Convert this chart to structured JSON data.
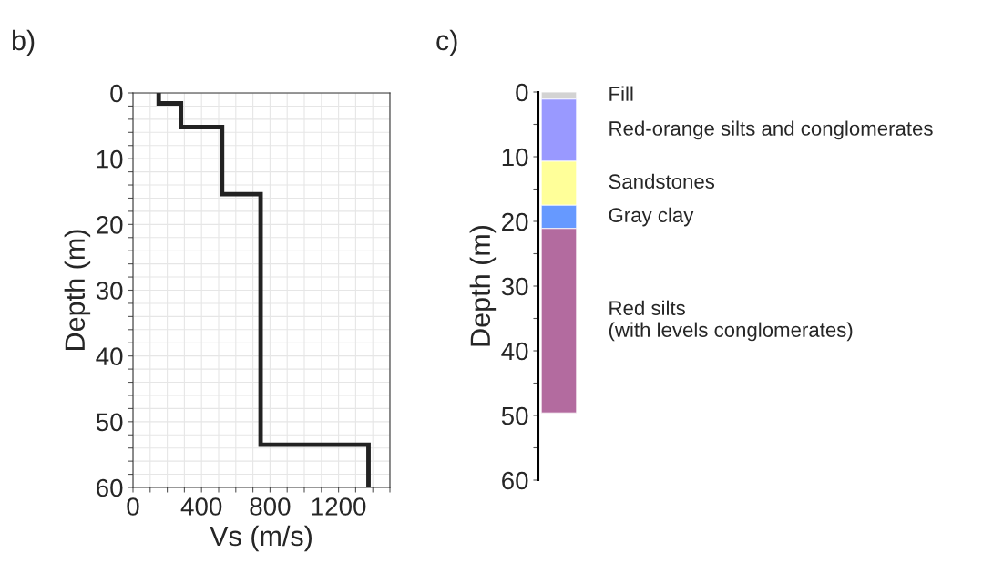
{
  "chart_data": [
    {
      "type": "line",
      "title": "b)",
      "xlabel": "Vs (m/s)",
      "ylabel": "Depth (m)",
      "series": [
        {
          "color": "#222222",
          "x": [
            150,
            150,
            280,
            280,
            520,
            520,
            745,
            745,
            1375,
            1375
          ],
          "values": [
            0,
            1.6,
            1.6,
            5.2,
            5.2,
            15.4,
            15.4,
            53.5,
            53.5,
            60
          ]
        }
      ],
      "xlim": [
        0,
        1500
      ],
      "ylim": [
        60,
        0
      ],
      "xticks": [
        0,
        {
          "value": 100,
          "label": null
        },
        {
          "value": 200,
          "label": null
        },
        {
          "value": 300,
          "label": null
        },
        400,
        {
          "value": 500,
          "label": null
        },
        {
          "value": 600,
          "label": null
        },
        {
          "value": 700,
          "label": null
        },
        800,
        {
          "value": 900,
          "label": null
        },
        {
          "value": 1000,
          "label": null
        },
        {
          "value": 1100,
          "label": null
        },
        1200,
        {
          "value": 1300,
          "label": null
        },
        {
          "value": 1400,
          "label": null
        },
        {
          "value": 1500,
          "label": null
        }
      ],
      "yticks": [
        0,
        {
          "value": 2,
          "label": null
        },
        {
          "value": 4,
          "label": null
        },
        {
          "value": 6,
          "label": null
        },
        {
          "value": 8,
          "label": null
        },
        10,
        {
          "value": 12,
          "label": null
        },
        {
          "value": 14,
          "label": null
        },
        {
          "value": 16,
          "label": null
        },
        {
          "value": 18,
          "label": null
        },
        20,
        {
          "value": 22,
          "label": null
        },
        {
          "value": 24,
          "label": null
        },
        {
          "value": 26,
          "label": null
        },
        {
          "value": 28,
          "label": null
        },
        30,
        {
          "value": 32,
          "label": null
        },
        {
          "value": 34,
          "label": null
        },
        {
          "value": 36,
          "label": null
        },
        {
          "value": 38,
          "label": null
        },
        40,
        {
          "value": 42,
          "label": null
        },
        {
          "value": 44,
          "label": null
        },
        {
          "value": 46,
          "label": null
        },
        {
          "value": 48,
          "label": null
        },
        50,
        {
          "value": 52,
          "label": null
        },
        {
          "value": 54,
          "label": null
        },
        {
          "value": 56,
          "label": null
        },
        {
          "value": 58,
          "label": null
        },
        60
      ],
      "grid": true,
      "line_style": "solid"
    },
    {
      "type": "bar",
      "stacked": true,
      "title": "c)",
      "ylabel": "Depth (m)",
      "categories": [
        null
      ],
      "series": [
        {
          "name": "Fill",
          "color": "#d3d3d3",
          "values": [
            1.1
          ]
        },
        {
          "name": "Red-orange silts and conglomerates",
          "color": "#9999ff",
          "values": [
            9.6
          ]
        },
        {
          "name": "Sandstones",
          "color": "#ffff99",
          "values": [
            6.8
          ]
        },
        {
          "name": "Gray clay",
          "color": "#6699ff",
          "values": [
            3.6
          ]
        },
        {
          "name": "Red silts\n(with levels conglomerates)",
          "color": "#b36b9f",
          "values": [
            28.5
          ]
        }
      ],
      "ylim": [
        60,
        0
      ],
      "yticks": [
        0,
        {
          "value": 5,
          "label": null
        },
        10,
        {
          "value": 15,
          "label": null
        },
        20,
        {
          "value": 25,
          "label": null
        },
        30,
        {
          "value": 35,
          "label": null
        },
        40,
        {
          "value": 45,
          "label": null
        },
        50,
        {
          "value": 55,
          "label": null
        },
        60
      ],
      "tick_labels": "y"
    }
  ]
}
